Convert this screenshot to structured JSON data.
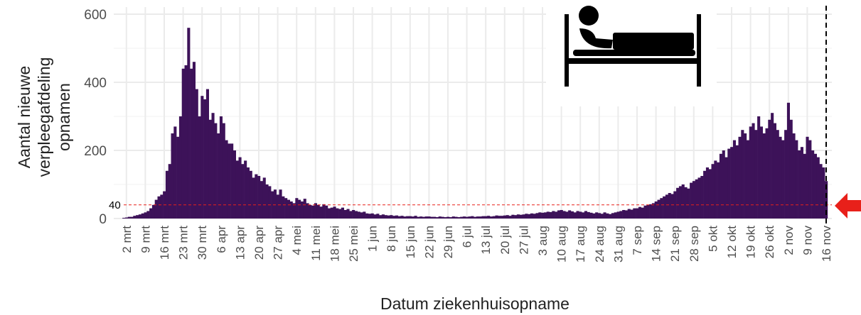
{
  "chart_data": {
    "type": "bar",
    "ylabel": [
      "Aantal nieuwe",
      "verpleegafdeling",
      "opnamen"
    ],
    "xlabel": "Datum ziekenhuisopname",
    "color": "#3d1259",
    "ylim": [
      0,
      600
    ],
    "yticks": [
      0,
      200,
      400,
      600
    ],
    "grid": true,
    "reference_line": {
      "value": 40,
      "color": "#e8201a"
    },
    "categories": [
      null,
      "2 mrt",
      null,
      null,
      null,
      null,
      null,
      null,
      "9 mrt",
      null,
      null,
      null,
      null,
      null,
      null,
      "16 mrt",
      null,
      null,
      null,
      null,
      null,
      null,
      "23 mrt",
      null,
      null,
      null,
      null,
      null,
      null,
      "30 mrt",
      null,
      null,
      null,
      null,
      null,
      null,
      "6 apr",
      null,
      null,
      null,
      null,
      null,
      null,
      "13 apr",
      null,
      null,
      null,
      null,
      null,
      null,
      "20 apr",
      null,
      null,
      null,
      null,
      null,
      null,
      "27 apr",
      null,
      null,
      null,
      null,
      null,
      null,
      "4 mei",
      null,
      null,
      null,
      null,
      null,
      null,
      "11 mei",
      null,
      null,
      null,
      null,
      null,
      null,
      "18 mei",
      null,
      null,
      null,
      null,
      null,
      null,
      "25 mei",
      null,
      null,
      null,
      null,
      null,
      null,
      "1 jun",
      null,
      null,
      null,
      null,
      null,
      null,
      "8 jun",
      null,
      null,
      null,
      null,
      null,
      null,
      "15 jun",
      null,
      null,
      null,
      null,
      null,
      null,
      "22 jun",
      null,
      null,
      null,
      null,
      null,
      null,
      "29 jun",
      null,
      null,
      null,
      null,
      null,
      null,
      "6 jul",
      null,
      null,
      null,
      null,
      null,
      null,
      "13 jul",
      null,
      null,
      null,
      null,
      null,
      null,
      "20 jul",
      null,
      null,
      null,
      null,
      null,
      null,
      "27 jul",
      null,
      null,
      null,
      null,
      null,
      null,
      "3 aug",
      null,
      null,
      null,
      null,
      null,
      null,
      "10 aug",
      null,
      null,
      null,
      null,
      null,
      null,
      "17 aug",
      null,
      null,
      null,
      null,
      null,
      null,
      "24 aug",
      null,
      null,
      null,
      null,
      null,
      null,
      "31 aug",
      null,
      null,
      null,
      null,
      null,
      null,
      "7 sep",
      null,
      null,
      null,
      null,
      null,
      null,
      "14 sep",
      null,
      null,
      null,
      null,
      null,
      null,
      "21 sep",
      null,
      null,
      null,
      null,
      null,
      null,
      "28 sep",
      null,
      null,
      null,
      null,
      null,
      null,
      "5 okt",
      null,
      null,
      null,
      null,
      null,
      null,
      "12 okt",
      null,
      null,
      null,
      null,
      null,
      null,
      "19 okt",
      null,
      null,
      null,
      null,
      null,
      null,
      "26 okt",
      null,
      null,
      null,
      null,
      null,
      null,
      "2 nov",
      null,
      null,
      null,
      null,
      null,
      null,
      "9 nov",
      null,
      null,
      null,
      null,
      null,
      null,
      "16 nov"
    ],
    "values": [
      2,
      3,
      5,
      5,
      8,
      10,
      12,
      15,
      18,
      22,
      30,
      40,
      55,
      65,
      70,
      80,
      140,
      160,
      250,
      270,
      240,
      300,
      440,
      450,
      560,
      440,
      460,
      380,
      300,
      360,
      350,
      380,
      290,
      310,
      280,
      250,
      300,
      280,
      230,
      220,
      220,
      200,
      170,
      180,
      160,
      170,
      150,
      140,
      120,
      130,
      125,
      110,
      120,
      100,
      95,
      80,
      85,
      70,
      85,
      65,
      60,
      55,
      50,
      45,
      60,
      55,
      50,
      58,
      45,
      40,
      38,
      45,
      40,
      35,
      42,
      38,
      30,
      32,
      35,
      30,
      28,
      32,
      25,
      28,
      22,
      25,
      22,
      20,
      18,
      20,
      15,
      14,
      15,
      12,
      14,
      10,
      12,
      10,
      9,
      10,
      8,
      9,
      7,
      8,
      6,
      7,
      7,
      6,
      8,
      5,
      6,
      5,
      6,
      6,
      5,
      5,
      4,
      6,
      5,
      4,
      5,
      4,
      6,
      5,
      4,
      5,
      6,
      5,
      6,
      7,
      5,
      6,
      6,
      7,
      7,
      8,
      6,
      7,
      9,
      8,
      8,
      9,
      10,
      8,
      11,
      10,
      12,
      11,
      12,
      14,
      13,
      15,
      14,
      16,
      18,
      17,
      18,
      20,
      19,
      22,
      20,
      24,
      25,
      22,
      20,
      24,
      21,
      18,
      22,
      20,
      18,
      22,
      19,
      17,
      15,
      18,
      16,
      14,
      18,
      15,
      13,
      16,
      18,
      20,
      22,
      25,
      24,
      28,
      26,
      30,
      30,
      34,
      32,
      38,
      40,
      42,
      45,
      50,
      55,
      60,
      65,
      70,
      75,
      72,
      80,
      90,
      95,
      100,
      92,
      88,
      105,
      110,
      115,
      120,
      125,
      140,
      150,
      145,
      160,
      170,
      165,
      190,
      200,
      180,
      205,
      210,
      230,
      215,
      240,
      260,
      250,
      230,
      270,
      280,
      260,
      300,
      270,
      250,
      265,
      290,
      310,
      280,
      260,
      240,
      230,
      260,
      340,
      290,
      250,
      230,
      200,
      210,
      190,
      240,
      230,
      200,
      190,
      180,
      160,
      150,
      110
    ]
  }
}
